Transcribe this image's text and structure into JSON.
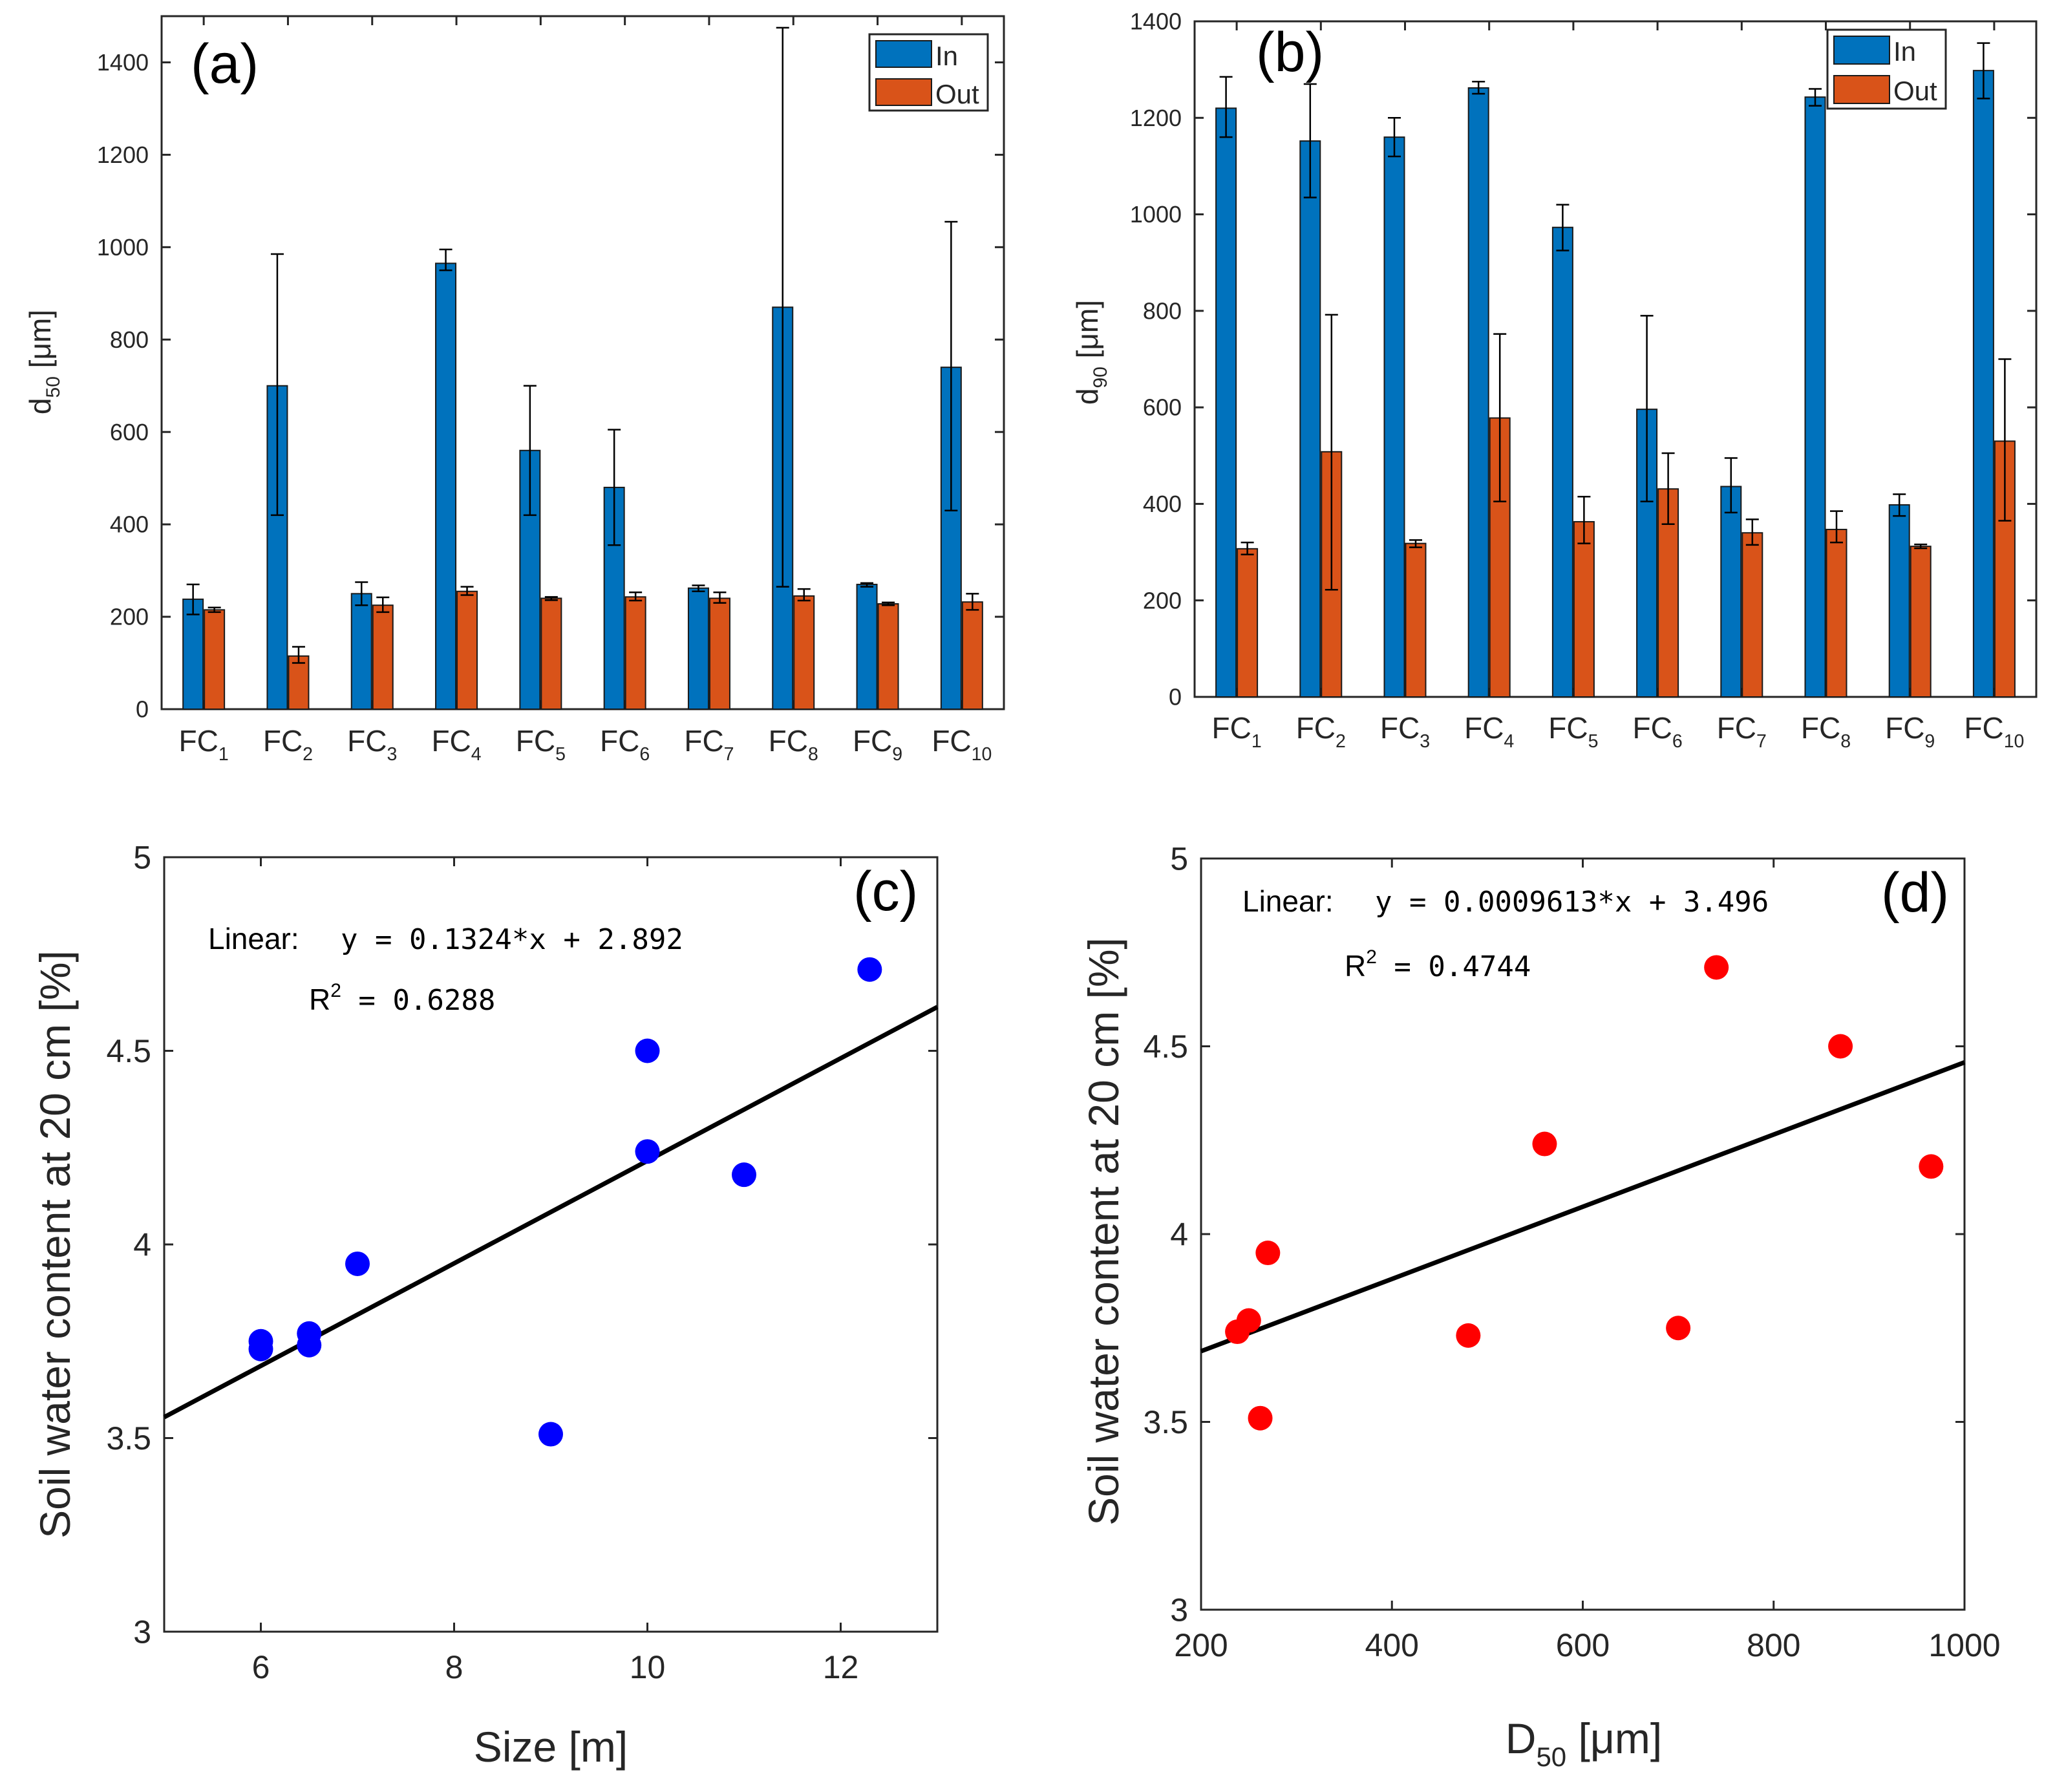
{
  "chart_data": [
    {
      "panel": "(a)",
      "type": "bar",
      "ylabel": "d",
      "ylabel_sub": "50",
      "ylabel_unit": "[μm]",
      "ylim": [
        0,
        1500
      ],
      "yticks": [
        0,
        200,
        400,
        600,
        800,
        1000,
        1200,
        1400
      ],
      "categories": [
        {
          "base": "FC",
          "sub": "1"
        },
        {
          "base": "FC",
          "sub": "2"
        },
        {
          "base": "FC",
          "sub": "3"
        },
        {
          "base": "FC",
          "sub": "4"
        },
        {
          "base": "FC",
          "sub": "5"
        },
        {
          "base": "FC",
          "sub": "6"
        },
        {
          "base": "FC",
          "sub": "7"
        },
        {
          "base": "FC",
          "sub": "8"
        },
        {
          "base": "FC",
          "sub": "9"
        },
        {
          "base": "FC",
          "sub": "10"
        }
      ],
      "legend": {
        "position": "top-right",
        "entries": [
          "In",
          "Out"
        ]
      },
      "series": [
        {
          "name": "In",
          "color": "#0072bd",
          "values": [
            238,
            700,
            250,
            965,
            560,
            480,
            262,
            870,
            270,
            740
          ],
          "err_low": [
            205,
            420,
            225,
            950,
            420,
            355,
            255,
            265,
            265,
            430
          ],
          "err_high": [
            270,
            985,
            275,
            995,
            700,
            605,
            268,
            1475,
            273,
            1055
          ]
        },
        {
          "name": "Out",
          "color": "#d95319",
          "values": [
            215,
            115,
            225,
            255,
            240,
            243,
            240,
            245,
            228,
            232
          ],
          "err_low": [
            210,
            100,
            210,
            247,
            236,
            235,
            230,
            235,
            225,
            215
          ],
          "err_high": [
            220,
            135,
            242,
            265,
            243,
            253,
            253,
            260,
            231,
            250
          ]
        }
      ]
    },
    {
      "panel": "(b)",
      "type": "bar",
      "ylabel": "d",
      "ylabel_sub": "90",
      "ylabel_unit": "[μm]",
      "ylim": [
        0,
        1400
      ],
      "yticks": [
        0,
        200,
        400,
        600,
        800,
        1000,
        1200,
        1400
      ],
      "categories": [
        {
          "base": "FC",
          "sub": "1"
        },
        {
          "base": "FC",
          "sub": "2"
        },
        {
          "base": "FC",
          "sub": "3"
        },
        {
          "base": "FC",
          "sub": "4"
        },
        {
          "base": "FC",
          "sub": "5"
        },
        {
          "base": "FC",
          "sub": "6"
        },
        {
          "base": "FC",
          "sub": "7"
        },
        {
          "base": "FC",
          "sub": "8"
        },
        {
          "base": "FC",
          "sub": "9"
        },
        {
          "base": "FC",
          "sub": "10"
        }
      ],
      "legend": {
        "position": "top-right",
        "entries": [
          "In",
          "Out"
        ]
      },
      "series": [
        {
          "name": "In",
          "color": "#0072bd",
          "values": [
            1220,
            1152,
            1160,
            1262,
            973,
            596,
            436,
            1243,
            398,
            1298
          ],
          "err_low": [
            1160,
            1035,
            1120,
            1250,
            925,
            405,
            382,
            1225,
            375,
            1240
          ],
          "err_high": [
            1285,
            1270,
            1200,
            1275,
            1020,
            790,
            495,
            1260,
            420,
            1355
          ]
        },
        {
          "name": "Out",
          "color": "#d95319",
          "values": [
            307,
            508,
            318,
            578,
            363,
            431,
            340,
            347,
            312,
            530
          ],
          "err_low": [
            295,
            222,
            310,
            405,
            318,
            358,
            315,
            320,
            308,
            365
          ],
          "err_high": [
            320,
            792,
            325,
            752,
            415,
            505,
            368,
            385,
            316,
            700
          ]
        }
      ]
    },
    {
      "panel": "(c)",
      "type": "scatter",
      "xlabel": "Size [m]",
      "ylabel": "Soil water content at 20 cm [%]",
      "xlim": [
        5,
        13
      ],
      "ylim": [
        3,
        5
      ],
      "xticks": [
        6,
        8,
        10,
        12
      ],
      "yticks": [
        3,
        3.5,
        4,
        4.5,
        5
      ],
      "color": "#0000ff",
      "points": [
        {
          "x": 6,
          "y": 3.75
        },
        {
          "x": 6,
          "y": 3.73
        },
        {
          "x": 6.5,
          "y": 3.77
        },
        {
          "x": 6.5,
          "y": 3.74
        },
        {
          "x": 7,
          "y": 3.95
        },
        {
          "x": 9,
          "y": 3.51
        },
        {
          "x": 10,
          "y": 4.5
        },
        {
          "x": 10,
          "y": 4.24
        },
        {
          "x": 11,
          "y": 4.18
        },
        {
          "x": 12.3,
          "y": 4.71
        }
      ],
      "fit": {
        "slope": 0.1324,
        "intercept": 2.892
      },
      "equation_label": "Linear:",
      "equation": "y = 0.1324*x + 2.892",
      "r2_label": "R",
      "r2_exp": "2",
      "r2_value": "= 0.6288"
    },
    {
      "panel": "(d)",
      "type": "scatter",
      "xlabel": "D",
      "xlabel_sub": "50",
      "xlabel_unit": "[μm]",
      "ylabel": "Soil water content at 20 cm [%]",
      "xlim": [
        200,
        1000
      ],
      "ylim": [
        3,
        5
      ],
      "xticks": [
        200,
        400,
        600,
        800,
        1000
      ],
      "yticks": [
        3,
        3.5,
        4,
        4.5,
        5
      ],
      "color": "#ff0000",
      "points": [
        {
          "x": 238,
          "y": 3.74
        },
        {
          "x": 250,
          "y": 3.77
        },
        {
          "x": 262,
          "y": 3.51
        },
        {
          "x": 270,
          "y": 3.95
        },
        {
          "x": 480,
          "y": 3.73
        },
        {
          "x": 560,
          "y": 4.24
        },
        {
          "x": 700,
          "y": 3.75
        },
        {
          "x": 740,
          "y": 4.71
        },
        {
          "x": 870,
          "y": 4.5
        },
        {
          "x": 965,
          "y": 4.18
        }
      ],
      "fit": {
        "slope": 0.0009613,
        "intercept": 3.496
      },
      "equation_label": "Linear:",
      "equation": "y = 0.0009613*x + 3.496",
      "r2_label": "R",
      "r2_exp": "2",
      "r2_value": "= 0.4744"
    }
  ]
}
